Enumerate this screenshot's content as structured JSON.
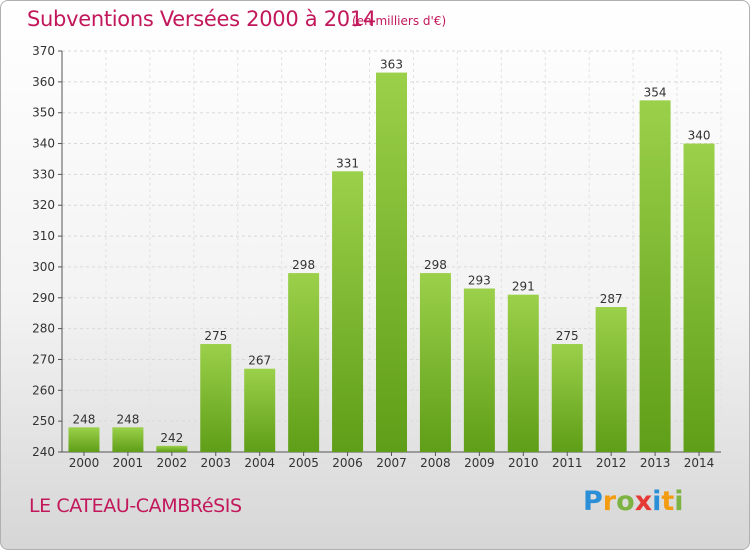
{
  "title": "Subventions Versées 2000 à 2014",
  "unit": "(en milliers d'€)",
  "place": "LE CATEAU-CAMBRéSIS",
  "logo": {
    "letters": [
      "P",
      "r",
      "o",
      "x",
      "i",
      "t",
      "i"
    ],
    "colors": [
      "#2a8fd6",
      "#f39c12",
      "#7cb342",
      "#e53935",
      "#2a8fd6",
      "#f39c12",
      "#7cb342"
    ]
  },
  "colors": {
    "bar_top": "#9bd04a",
    "bar_bottom": "#5f9e18",
    "title": "#c2185b"
  },
  "chart_data": {
    "type": "bar",
    "categories": [
      "2000",
      "2001",
      "2002",
      "2003",
      "2004",
      "2005",
      "2006",
      "2007",
      "2008",
      "2009",
      "2010",
      "2011",
      "2012",
      "2013",
      "2014"
    ],
    "values": [
      248,
      248,
      242,
      275,
      267,
      298,
      331,
      363,
      298,
      293,
      291,
      275,
      287,
      354,
      340
    ],
    "ylim": [
      240,
      370
    ],
    "yticks": [
      240,
      250,
      260,
      270,
      280,
      290,
      300,
      310,
      320,
      330,
      340,
      350,
      360,
      370
    ],
    "grid": true,
    "data_labels": true
  }
}
